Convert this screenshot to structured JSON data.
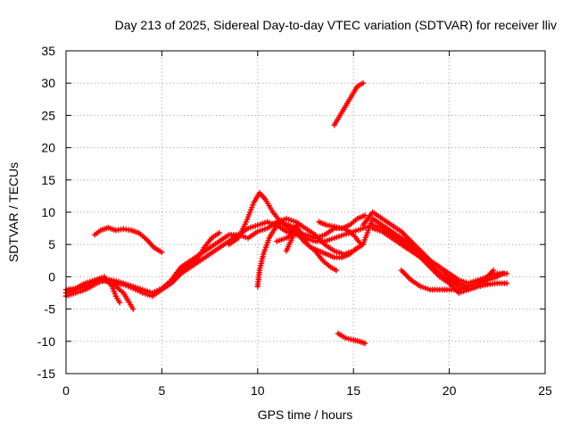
{
  "chart_data": {
    "type": "scatter",
    "title": "Day 213 of 2025, Sidereal Day-to-day VTEC variation (SDTVAR) for receiver lliv",
    "xlabel": "GPS time / hours",
    "ylabel": "SDTVAR / TECUs",
    "xlim": [
      0,
      25
    ],
    "ylim": [
      -15,
      35
    ],
    "x_ticks": [
      0,
      5,
      10,
      15,
      20,
      25
    ],
    "y_ticks": [
      -15,
      -10,
      -5,
      0,
      5,
      10,
      15,
      20,
      25,
      30,
      35
    ],
    "grid": true,
    "series_color": "#ff0000",
    "series": [
      {
        "name": "a",
        "points": [
          [
            1.5,
            6.5
          ],
          [
            1.8,
            7.2
          ],
          [
            2.2,
            7.6
          ],
          [
            2.6,
            7.2
          ],
          [
            3.0,
            7.4
          ],
          [
            3.4,
            7.2
          ],
          [
            3.8,
            6.8
          ],
          [
            4.2,
            5.8
          ],
          [
            4.6,
            4.5
          ],
          [
            5.0,
            3.8
          ]
        ]
      },
      {
        "name": "b",
        "points": [
          [
            0,
            -2.5
          ],
          [
            0.5,
            -2.0
          ],
          [
            1.0,
            -1.5
          ],
          [
            1.5,
            -0.8
          ],
          [
            2.0,
            -0.3
          ],
          [
            2.5,
            -0.6
          ],
          [
            3.0,
            -1.0
          ],
          [
            3.5,
            -1.5
          ],
          [
            4.0,
            -2.0
          ],
          [
            4.5,
            -2.5
          ],
          [
            5.0,
            -1.8
          ],
          [
            5.5,
            -0.5
          ],
          [
            6.0,
            1.5
          ],
          [
            6.5,
            2.5
          ],
          [
            7.0,
            3.5
          ],
          [
            7.5,
            4.5
          ],
          [
            8.0,
            5.5
          ],
          [
            8.5,
            6.5
          ],
          [
            9.0,
            6.5
          ],
          [
            9.5,
            7.5
          ],
          [
            10.0,
            8.0
          ],
          [
            10.5,
            8.5
          ],
          [
            11.0,
            8.0
          ],
          [
            11.5,
            7.0
          ],
          [
            12.0,
            6.5
          ],
          [
            12.5,
            6.0
          ],
          [
            13.0,
            5.5
          ],
          [
            13.5,
            5.5
          ],
          [
            14.0,
            6.0
          ],
          [
            14.5,
            6.5
          ],
          [
            15.0,
            7.0
          ],
          [
            15.5,
            7.5
          ],
          [
            16.0,
            8.0
          ],
          [
            16.5,
            7.5
          ],
          [
            17.0,
            6.5
          ],
          [
            17.5,
            5.5
          ],
          [
            18.0,
            4.5
          ],
          [
            18.5,
            3.5
          ],
          [
            19.0,
            2.0
          ],
          [
            19.5,
            0.5
          ],
          [
            20.0,
            -0.5
          ],
          [
            20.5,
            -1.5
          ],
          [
            21.0,
            -2.0
          ],
          [
            21.5,
            -1.5
          ],
          [
            22.0,
            -1.2
          ],
          [
            22.5,
            -1.0
          ],
          [
            23.0,
            -1.0
          ]
        ]
      },
      {
        "name": "c",
        "points": [
          [
            0,
            -3.0
          ],
          [
            0.5,
            -2.5
          ],
          [
            1.0,
            -2.0
          ],
          [
            1.5,
            -1.2
          ],
          [
            2.0,
            -0.5
          ],
          [
            2.5,
            -1.0
          ],
          [
            3.0,
            -1.2
          ],
          [
            3.5,
            -1.8
          ],
          [
            4.0,
            -2.5
          ],
          [
            4.5,
            -3.0
          ],
          [
            5.0,
            -2.0
          ],
          [
            5.5,
            -1.0
          ],
          [
            6.0,
            0.5
          ],
          [
            6.5,
            1.5
          ],
          [
            7.0,
            2.5
          ],
          [
            7.5,
            3.5
          ],
          [
            8.0,
            4.5
          ],
          [
            8.5,
            5.5
          ],
          [
            9.0,
            6.5
          ],
          [
            9.5,
            6.0
          ],
          [
            10.0,
            7.0
          ],
          [
            10.5,
            7.5
          ],
          [
            11.0,
            8.5
          ],
          [
            11.5,
            9.0
          ],
          [
            12.0,
            8.5
          ],
          [
            12.5,
            7.5
          ],
          [
            13.0,
            6.5
          ],
          [
            13.5,
            5.0
          ],
          [
            14.0,
            4.0
          ],
          [
            14.5,
            3.5
          ],
          [
            15.0,
            4.0
          ],
          [
            15.5,
            5.0
          ],
          [
            16.0,
            9.0
          ],
          [
            16.5,
            8.0
          ],
          [
            17.0,
            7.0
          ],
          [
            17.5,
            6.0
          ],
          [
            18.0,
            5.0
          ],
          [
            18.5,
            4.0
          ],
          [
            19.0,
            2.5
          ],
          [
            19.5,
            1.5
          ],
          [
            20.0,
            0.5
          ],
          [
            20.5,
            -0.5
          ],
          [
            21.0,
            -1.0
          ],
          [
            21.5,
            -0.5
          ],
          [
            22.0,
            0.0
          ],
          [
            22.5,
            0.5
          ],
          [
            23.0,
            0.5
          ]
        ]
      },
      {
        "name": "d",
        "points": [
          [
            0,
            -2.0
          ],
          [
            0.5,
            -1.8
          ],
          [
            1.0,
            -1.0
          ],
          [
            1.5,
            -0.5
          ],
          [
            2.0,
            0.0
          ],
          [
            2.4,
            -1.5
          ],
          [
            2.6,
            -3.0
          ],
          [
            2.8,
            -4.0
          ]
        ]
      },
      {
        "name": "e",
        "points": [
          [
            1.8,
            -0.5
          ],
          [
            2.2,
            -0.8
          ],
          [
            2.6,
            -1.5
          ],
          [
            3.0,
            -2.5
          ],
          [
            3.3,
            -4.0
          ],
          [
            3.5,
            -5.0
          ]
        ]
      },
      {
        "name": "f",
        "points": [
          [
            5.5,
            -1.0
          ],
          [
            5.8,
            0.0
          ],
          [
            6.2,
            1.5
          ],
          [
            6.8,
            2.5
          ],
          [
            7.2,
            4.5
          ],
          [
            7.6,
            6.0
          ],
          [
            8.0,
            6.8
          ]
        ]
      },
      {
        "name": "g",
        "points": [
          [
            8.5,
            5.0
          ],
          [
            9.0,
            6.0
          ],
          [
            9.4,
            8.5
          ],
          [
            9.8,
            11.5
          ],
          [
            10.1,
            13.0
          ],
          [
            10.4,
            12.0
          ],
          [
            10.8,
            10.0
          ],
          [
            11.2,
            8.5
          ],
          [
            11.6,
            7.5
          ],
          [
            12.0,
            7.0
          ],
          [
            12.4,
            5.5
          ],
          [
            12.8,
            4.5
          ],
          [
            13.2,
            4.0
          ],
          [
            13.6,
            3.5
          ],
          [
            14.0,
            3.0
          ],
          [
            14.4,
            3.0
          ],
          [
            14.8,
            3.5
          ],
          [
            15.2,
            4.5
          ]
        ]
      },
      {
        "name": "h",
        "points": [
          [
            10.0,
            -1.5
          ],
          [
            10.1,
            1.0
          ],
          [
            10.3,
            3.5
          ],
          [
            10.6,
            6.0
          ],
          [
            10.9,
            7.5
          ],
          [
            11.2,
            8.5
          ],
          [
            11.6,
            8.0
          ],
          [
            12.0,
            7.5
          ]
        ]
      },
      {
        "name": "i",
        "points": [
          [
            11.5,
            4.0
          ],
          [
            11.8,
            6.0
          ],
          [
            12.0,
            8.0
          ],
          [
            12.3,
            6.5
          ],
          [
            12.6,
            5.0
          ],
          [
            13.0,
            4.0
          ],
          [
            13.4,
            2.5
          ],
          [
            13.8,
            1.5
          ],
          [
            14.1,
            1.0
          ]
        ]
      },
      {
        "name": "j",
        "points": [
          [
            11.0,
            5.5
          ],
          [
            11.5,
            6.0
          ],
          [
            12.0,
            7.0
          ],
          [
            12.5,
            6.5
          ],
          [
            13.0,
            6.0
          ],
          [
            13.5,
            6.5
          ],
          [
            14.0,
            7.5
          ],
          [
            14.5,
            7.5
          ],
          [
            15.0,
            6.5
          ],
          [
            15.4,
            5.0
          ]
        ]
      },
      {
        "name": "k",
        "points": [
          [
            13.2,
            8.5
          ],
          [
            13.6,
            8.0
          ],
          [
            14.0,
            7.8
          ],
          [
            14.4,
            7.5
          ],
          [
            14.8,
            8.0
          ],
          [
            15.2,
            9.0
          ],
          [
            15.6,
            9.5
          ]
        ]
      },
      {
        "name": "l",
        "points": [
          [
            14.0,
            23.5
          ],
          [
            14.3,
            25.0
          ],
          [
            14.6,
            26.5
          ],
          [
            14.9,
            28.0
          ],
          [
            15.2,
            29.5
          ],
          [
            15.5,
            30.0
          ]
        ]
      },
      {
        "name": "m",
        "points": [
          [
            14.2,
            -8.8
          ],
          [
            14.6,
            -9.5
          ],
          [
            15.0,
            -9.8
          ],
          [
            15.3,
            -10.0
          ],
          [
            15.6,
            -10.3
          ]
        ]
      },
      {
        "name": "n",
        "points": [
          [
            15.5,
            8.0
          ],
          [
            16.0,
            10.0
          ],
          [
            16.5,
            9.0
          ],
          [
            17.0,
            8.0
          ],
          [
            17.5,
            7.0
          ],
          [
            18.0,
            5.5
          ],
          [
            18.5,
            4.0
          ],
          [
            19.0,
            2.5
          ],
          [
            19.5,
            1.5
          ],
          [
            20.0,
            0.0
          ],
          [
            20.5,
            -1.0
          ],
          [
            21.0,
            -1.5
          ],
          [
            21.5,
            -1.0
          ],
          [
            22.0,
            -0.5
          ],
          [
            22.5,
            0.0
          ],
          [
            22.8,
            0.5
          ]
        ]
      },
      {
        "name": "o",
        "points": [
          [
            16.0,
            7.5
          ],
          [
            16.5,
            7.0
          ],
          [
            17.0,
            6.0
          ],
          [
            17.5,
            5.0
          ],
          [
            18.0,
            4.0
          ],
          [
            18.5,
            3.0
          ],
          [
            19.0,
            1.5
          ],
          [
            19.5,
            0.0
          ],
          [
            20.0,
            -1.0
          ],
          [
            20.5,
            -2.5
          ],
          [
            21.0,
            -2.0
          ],
          [
            21.5,
            -1.5
          ],
          [
            22.0,
            -1.0
          ]
        ]
      },
      {
        "name": "p",
        "points": [
          [
            17.5,
            1.0
          ],
          [
            18.0,
            -0.5
          ],
          [
            18.5,
            -1.5
          ],
          [
            19.0,
            -2.0
          ],
          [
            19.5,
            -2.0
          ],
          [
            20.0,
            -2.0
          ],
          [
            20.5,
            -2.0
          ],
          [
            21.0,
            -1.5
          ],
          [
            21.5,
            -1.0
          ],
          [
            22.0,
            0.0
          ],
          [
            22.3,
            1.0
          ]
        ]
      }
    ]
  }
}
